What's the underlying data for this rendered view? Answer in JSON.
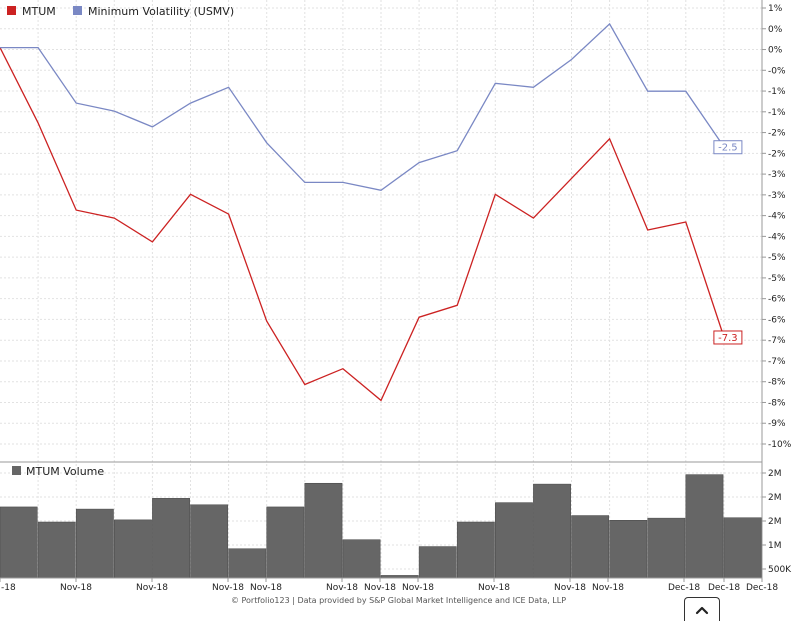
{
  "chart_data": [
    {
      "type": "line",
      "x": [
        "-18",
        "Nov-18",
        "Nov-18",
        "Nov-18",
        "Nov-18",
        "Nov-18",
        "Nov-18",
        "Nov-18",
        "Nov-18",
        "Nov-18",
        "Nov-18",
        "Nov-18",
        "Nov-18",
        "Nov-18",
        "Nov-18",
        "Nov-18",
        "Dec-18",
        "Dec-18",
        "Dec-18",
        "Dec-18",
        "Dec-18"
      ],
      "series": [
        {
          "name": "MTUM",
          "color": "#cc2222",
          "values": [
            0.0,
            -1.9,
            -4.1,
            -4.3,
            -4.9,
            -3.7,
            -4.2,
            -6.9,
            -8.5,
            -8.1,
            -8.9,
            -6.8,
            -6.5,
            -3.7,
            -4.3,
            -3.3,
            -2.3,
            -4.6,
            -4.4,
            -7.3,
            null
          ]
        },
        {
          "name": "Minimum Volatility (USMV)",
          "color": "#7a88c4",
          "values": [
            0.0,
            0.0,
            -1.4,
            -1.6,
            -2.0,
            -1.4,
            -1.0,
            -2.4,
            -3.4,
            -3.4,
            -3.6,
            -2.9,
            -2.6,
            -0.9,
            -1.0,
            -0.3,
            0.6,
            -1.1,
            -1.1,
            -2.5,
            null
          ]
        }
      ],
      "yticks": [
        "1%",
        "0%",
        "0%",
        "-0%",
        "-1%",
        "-1%",
        "-2%",
        "-2%",
        "-3%",
        "-3%",
        "-4%",
        "-4%",
        "-5%",
        "-5%",
        "-6%",
        "-6%",
        "-7%",
        "-7%",
        "-8%",
        "-8%",
        "-9%",
        "-10%"
      ],
      "last_labels": [
        "-7.3",
        "-2.5"
      ],
      "ylim": [
        -10,
        1
      ],
      "legend_position": "top-left",
      "grid": true
    },
    {
      "type": "bar",
      "title": "MTUM Volume",
      "values": [
        1650000,
        1300000,
        1600000,
        1350000,
        1850000,
        1700000,
        680000,
        1650000,
        2200000,
        890000,
        60000,
        730000,
        1300000,
        1750000,
        2180000,
        1450000,
        1340000,
        1390000,
        2400000,
        1400000
      ],
      "yticks": [
        "2M",
        "2M",
        "2M",
        "1M",
        "500K"
      ],
      "color": "#666666"
    }
  ],
  "xaxis_labels": [
    "-18",
    "Nov-18",
    "Nov-18",
    "Nov-18",
    "Nov-18",
    "Nov-18",
    "Nov-18",
    "Nov-18",
    "Nov-18",
    "Nov-18",
    "Nov-18",
    "Dec-18",
    "Dec-18",
    "Dec-18"
  ],
  "legend": [
    {
      "label": "MTUM",
      "color": "#cc2222"
    },
    {
      "label": "Minimum Volatility (USMV)",
      "color": "#7a88c4"
    }
  ],
  "footer": "© Portfolio123 | Data provided by S&P Global Market Intelligence and ICE Data, LLP",
  "scroll_button_icon": "chevron-up-icon"
}
